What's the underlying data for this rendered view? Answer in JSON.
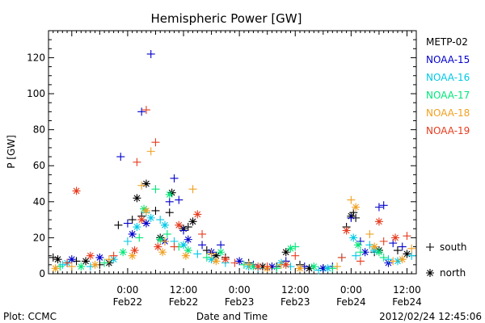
{
  "chart_data": {
    "type": "scatter",
    "title": "Hemispheric Power [GW]",
    "ylabel": "P [GW]",
    "xlabel": "Date and Time",
    "ylim": [
      0,
      135
    ],
    "xlim": [
      "2012-02-21 07:00",
      "2012-02-24 14:00"
    ],
    "yticks": [
      0,
      20,
      40,
      60,
      80,
      100,
      120
    ],
    "xticks": [
      {
        "time": "2012-02-22 00:00",
        "label": "0:00",
        "date": "Feb22"
      },
      {
        "time": "2012-02-22 12:00",
        "label": "12:00",
        "date": "Feb22"
      },
      {
        "time": "2012-02-23 00:00",
        "label": "0:00",
        "date": "Feb23"
      },
      {
        "time": "2012-02-23 12:00",
        "label": "12:00",
        "date": "Feb23"
      },
      {
        "time": "2012-02-24 00:00",
        "label": "0:00",
        "date": "Feb24"
      },
      {
        "time": "2012-02-24 12:00",
        "label": "12:00",
        "date": "Feb24"
      }
    ],
    "legend": {
      "placement": "right",
      "markers": [
        {
          "symbol": "+",
          "label": "south"
        },
        {
          "symbol": "*",
          "label": "north"
        }
      ]
    },
    "series": [
      {
        "name": "METP-02",
        "color": "#000000",
        "south": [
          [
            "2012-02-21 08:00",
            9
          ],
          [
            "2012-02-21 13:00",
            7
          ],
          [
            "2012-02-21 18:00",
            5
          ],
          [
            "2012-02-21 22:00",
            27
          ],
          [
            "2012-02-22 01:00",
            30
          ],
          [
            "2012-02-22 03:00",
            32
          ],
          [
            "2012-02-22 06:00",
            35
          ],
          [
            "2012-02-22 09:00",
            34
          ],
          [
            "2012-02-22 13:00",
            26
          ],
          [
            "2012-02-22 17:00",
            13
          ],
          [
            "2012-02-22 21:00",
            9
          ],
          [
            "2012-02-23 02:00",
            6
          ],
          [
            "2012-02-23 08:00",
            4
          ],
          [
            "2012-02-23 13:00",
            5
          ],
          [
            "2012-02-23 18:00",
            3
          ],
          [
            "2012-02-23 23:00",
            26
          ],
          [
            "2012-02-24 00:30",
            34
          ],
          [
            "2012-02-24 01:00",
            31
          ],
          [
            "2012-02-24 05:00",
            12
          ],
          [
            "2012-02-24 10:00",
            13
          ]
        ],
        "north": [
          [
            "2012-02-21 09:00",
            8
          ],
          [
            "2012-02-21 15:00",
            7
          ],
          [
            "2012-02-21 20:00",
            6
          ],
          [
            "2012-02-22 02:00",
            42
          ],
          [
            "2012-02-22 04:00",
            50
          ],
          [
            "2012-02-22 07:00",
            20
          ],
          [
            "2012-02-22 09:30",
            45
          ],
          [
            "2012-02-22 12:00",
            25
          ],
          [
            "2012-02-22 14:00",
            29
          ],
          [
            "2012-02-22 19:00",
            10
          ],
          [
            "2012-02-23 05:00",
            4
          ],
          [
            "2012-02-23 10:00",
            12
          ],
          [
            "2012-02-23 15:00",
            3
          ],
          [
            "2012-02-24 00:00",
            32
          ],
          [
            "2012-02-24 06:00",
            13
          ],
          [
            "2012-02-24 12:00",
            11
          ]
        ]
      },
      {
        "name": "NOAA-15",
        "color": "#0000cc",
        "south": [
          [
            "2012-02-21 22:30",
            65
          ],
          [
            "2012-02-22 00:00",
            28
          ],
          [
            "2012-02-22 03:00",
            90
          ],
          [
            "2012-02-22 05:00",
            122
          ],
          [
            "2012-02-22 09:00",
            40
          ],
          [
            "2012-02-22 10:00",
            53
          ],
          [
            "2012-02-22 11:00",
            41
          ],
          [
            "2012-02-22 12:00",
            24
          ],
          [
            "2012-02-22 16:00",
            16
          ],
          [
            "2012-02-22 20:00",
            16
          ],
          [
            "2012-02-23 03:00",
            5
          ],
          [
            "2012-02-23 10:00",
            7
          ],
          [
            "2012-02-23 14:00",
            4
          ],
          [
            "2012-02-23 20:00",
            4
          ],
          [
            "2012-02-24 00:00",
            31
          ],
          [
            "2012-02-24 02:00",
            18
          ],
          [
            "2012-02-24 06:00",
            37
          ],
          [
            "2012-02-24 07:00",
            38
          ],
          [
            "2012-02-24 09:00",
            17
          ],
          [
            "2012-02-24 11:00",
            15
          ]
        ],
        "north": [
          [
            "2012-02-21 12:00",
            8
          ],
          [
            "2012-02-21 18:00",
            9
          ],
          [
            "2012-02-22 01:00",
            22
          ],
          [
            "2012-02-22 04:00",
            28
          ],
          [
            "2012-02-22 08:00",
            18
          ],
          [
            "2012-02-22 13:00",
            19
          ],
          [
            "2012-02-22 18:00",
            12
          ],
          [
            "2012-02-23 00:00",
            7
          ],
          [
            "2012-02-23 07:00",
            4
          ],
          [
            "2012-02-23 18:00",
            3
          ],
          [
            "2012-02-24 03:00",
            12
          ],
          [
            "2012-02-24 08:00",
            6
          ]
        ]
      },
      {
        "name": "NOAA-16",
        "color": "#00c8e6",
        "south": [
          [
            "2012-02-21 10:00",
            5
          ],
          [
            "2012-02-21 16:00",
            4
          ],
          [
            "2012-02-22 00:00",
            18
          ],
          [
            "2012-02-22 04:00",
            34
          ],
          [
            "2012-02-22 07:00",
            30
          ],
          [
            "2012-02-22 10:00",
            18
          ],
          [
            "2012-02-22 15:00",
            11
          ],
          [
            "2012-02-22 21:00",
            6
          ],
          [
            "2012-02-23 04:00",
            3
          ],
          [
            "2012-02-23 11:00",
            4
          ],
          [
            "2012-02-23 17:00",
            2
          ],
          [
            "2012-02-23 22:00",
            9
          ],
          [
            "2012-02-24 01:00",
            10
          ],
          [
            "2012-02-24 04:00",
            16
          ],
          [
            "2012-02-24 08:00",
            8
          ],
          [
            "2012-02-24 13:00",
            10
          ]
        ],
        "north": [
          [
            "2012-02-21 11:00",
            6
          ],
          [
            "2012-02-21 21:00",
            8
          ],
          [
            "2012-02-22 02:00",
            26
          ],
          [
            "2012-02-22 05:00",
            31
          ],
          [
            "2012-02-22 08:00",
            27
          ],
          [
            "2012-02-22 12:00",
            16
          ],
          [
            "2012-02-22 18:00",
            8
          ],
          [
            "2012-02-23 02:00",
            4
          ],
          [
            "2012-02-23 09:00",
            6
          ],
          [
            "2012-02-23 19:00",
            3
          ],
          [
            "2012-02-24 00:30",
            20
          ],
          [
            "2012-02-24 05:00",
            13
          ],
          [
            "2012-02-24 10:00",
            7
          ]
        ]
      },
      {
        "name": "NOAA-17",
        "color": "#00e678",
        "south": [
          [
            "2012-02-21 09:30",
            4
          ],
          [
            "2012-02-21 19:00",
            6
          ],
          [
            "2012-02-22 02:30",
            20
          ],
          [
            "2012-02-22 06:00",
            47
          ],
          [
            "2012-02-22 08:30",
            22
          ],
          [
            "2012-02-22 11:00",
            15
          ],
          [
            "2012-02-22 17:00",
            9
          ],
          [
            "2012-02-23 01:00",
            5
          ],
          [
            "2012-02-23 08:00",
            3
          ],
          [
            "2012-02-23 12:00",
            15
          ],
          [
            "2012-02-23 20:00",
            3
          ],
          [
            "2012-02-24 02:00",
            12
          ],
          [
            "2012-02-24 07:00",
            9
          ]
        ],
        "north": [
          [
            "2012-02-21 14:00",
            4
          ],
          [
            "2012-02-21 23:00",
            12
          ],
          [
            "2012-02-22 03:30",
            36
          ],
          [
            "2012-02-22 07:00",
            19
          ],
          [
            "2012-02-22 09:00",
            44
          ],
          [
            "2012-02-22 13:00",
            13
          ],
          [
            "2012-02-22 20:00",
            12
          ],
          [
            "2012-02-23 03:00",
            4
          ],
          [
            "2012-02-23 11:00",
            14
          ],
          [
            "2012-02-23 16:00",
            4
          ],
          [
            "2012-02-24 01:30",
            16
          ],
          [
            "2012-02-24 06:00",
            12
          ]
        ]
      },
      {
        "name": "NOAA-18",
        "color": "#f0a020",
        "south": [
          [
            "2012-02-21 12:00",
            4
          ],
          [
            "2012-02-21 20:00",
            8
          ],
          [
            "2012-02-22 03:00",
            49
          ],
          [
            "2012-02-22 05:00",
            68
          ],
          [
            "2012-02-22 08:00",
            18
          ],
          [
            "2012-02-22 14:00",
            47
          ],
          [
            "2012-02-22 18:00",
            11
          ],
          [
            "2012-02-23 02:00",
            5
          ],
          [
            "2012-02-23 09:00",
            5
          ],
          [
            "2012-02-23 21:00",
            4
          ],
          [
            "2012-02-24 00:00",
            41
          ],
          [
            "2012-02-24 04:00",
            22
          ],
          [
            "2012-02-24 09:00",
            7
          ],
          [
            "2012-02-24 13:00",
            14
          ]
        ],
        "north": [
          [
            "2012-02-21 08:30",
            3
          ],
          [
            "2012-02-21 17:00",
            5
          ],
          [
            "2012-02-22 01:00",
            10
          ],
          [
            "2012-02-22 04:00",
            35
          ],
          [
            "2012-02-22 07:30",
            12
          ],
          [
            "2012-02-22 12:30",
            10
          ],
          [
            "2012-02-22 19:00",
            7
          ],
          [
            "2012-02-23 06:00",
            3
          ],
          [
            "2012-02-23 13:00",
            3
          ],
          [
            "2012-02-24 01:00",
            37
          ],
          [
            "2012-02-24 05:00",
            15
          ],
          [
            "2012-02-24 11:00",
            8
          ]
        ]
      },
      {
        "name": "NOAA-19",
        "color": "#e63c1e",
        "south": [
          [
            "2012-02-21 11:00",
            6
          ],
          [
            "2012-02-21 21:00",
            10
          ],
          [
            "2012-02-22 02:00",
            62
          ],
          [
            "2012-02-22 04:00",
            91
          ],
          [
            "2012-02-22 06:00",
            73
          ],
          [
            "2012-02-22 10:00",
            15
          ],
          [
            "2012-02-22 16:00",
            22
          ],
          [
            "2012-02-22 23:00",
            6
          ],
          [
            "2012-02-23 06:00",
            4
          ],
          [
            "2012-02-23 12:00",
            10
          ],
          [
            "2012-02-23 22:00",
            9
          ],
          [
            "2012-02-24 02:00",
            7
          ],
          [
            "2012-02-24 07:00",
            18
          ],
          [
            "2012-02-24 12:00",
            21
          ]
        ],
        "north": [
          [
            "2012-02-21 13:00",
            46
          ],
          [
            "2012-02-21 16:00",
            10
          ],
          [
            "2012-02-22 01:30",
            13
          ],
          [
            "2012-02-22 03:00",
            30
          ],
          [
            "2012-02-22 06:30",
            15
          ],
          [
            "2012-02-22 11:00",
            27
          ],
          [
            "2012-02-22 15:00",
            33
          ],
          [
            "2012-02-22 21:00",
            8
          ],
          [
            "2012-02-23 04:00",
            4
          ],
          [
            "2012-02-23 10:00",
            5
          ],
          [
            "2012-02-23 23:00",
            24
          ],
          [
            "2012-02-24 06:00",
            29
          ],
          [
            "2012-02-24 09:30",
            20
          ]
        ]
      }
    ]
  },
  "footer": {
    "left": "Plot: CCMC",
    "center": "Date and Time",
    "right": "2012/02/24 12:45:06"
  }
}
